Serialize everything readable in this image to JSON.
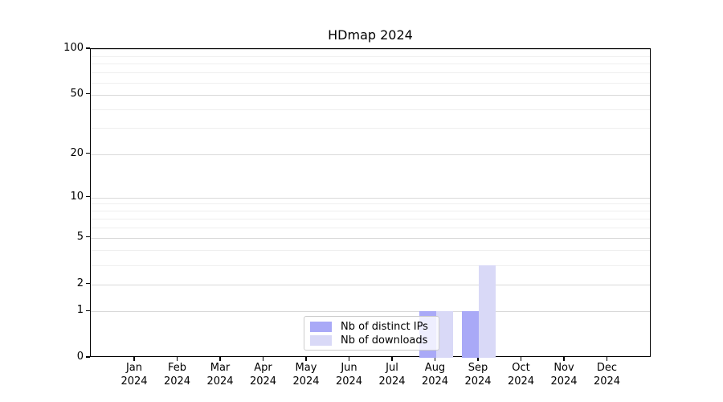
{
  "title": "HDmap 2024",
  "chart_data": {
    "type": "bar",
    "title": "HDmap 2024",
    "xlabel": "",
    "ylabel": "",
    "categories": [
      "Jan",
      "Feb",
      "Mar",
      "Apr",
      "May",
      "Jun",
      "Jul",
      "Aug",
      "Sep",
      "Oct",
      "Nov",
      "Dec"
    ],
    "category_year": "2024",
    "series": [
      {
        "name": "Nb of distinct IPs",
        "color": "#a9a9f7",
        "values": [
          0,
          0,
          0,
          0,
          0,
          0,
          0,
          1,
          1,
          0,
          0,
          0
        ]
      },
      {
        "name": "Nb of downloads",
        "color": "#d9d9f7",
        "values": [
          0,
          0,
          0,
          0,
          0,
          0,
          0,
          1,
          3,
          0,
          0,
          0
        ]
      }
    ],
    "yscale": "log1p",
    "ylim": [
      0,
      100
    ],
    "y_major_ticks": [
      100,
      50,
      20,
      10,
      5,
      2,
      1,
      0
    ],
    "y_minor_ticks": [
      3,
      4,
      6,
      7,
      8,
      9,
      30,
      40,
      60,
      70,
      80,
      90
    ],
    "grid": true,
    "legend_position": "lower center",
    "colors": {
      "grid_major": "#d9d9d9",
      "grid_minor": "#efefef",
      "spine": "#000000",
      "text": "#000000",
      "legend_border": "#cccccc"
    }
  }
}
